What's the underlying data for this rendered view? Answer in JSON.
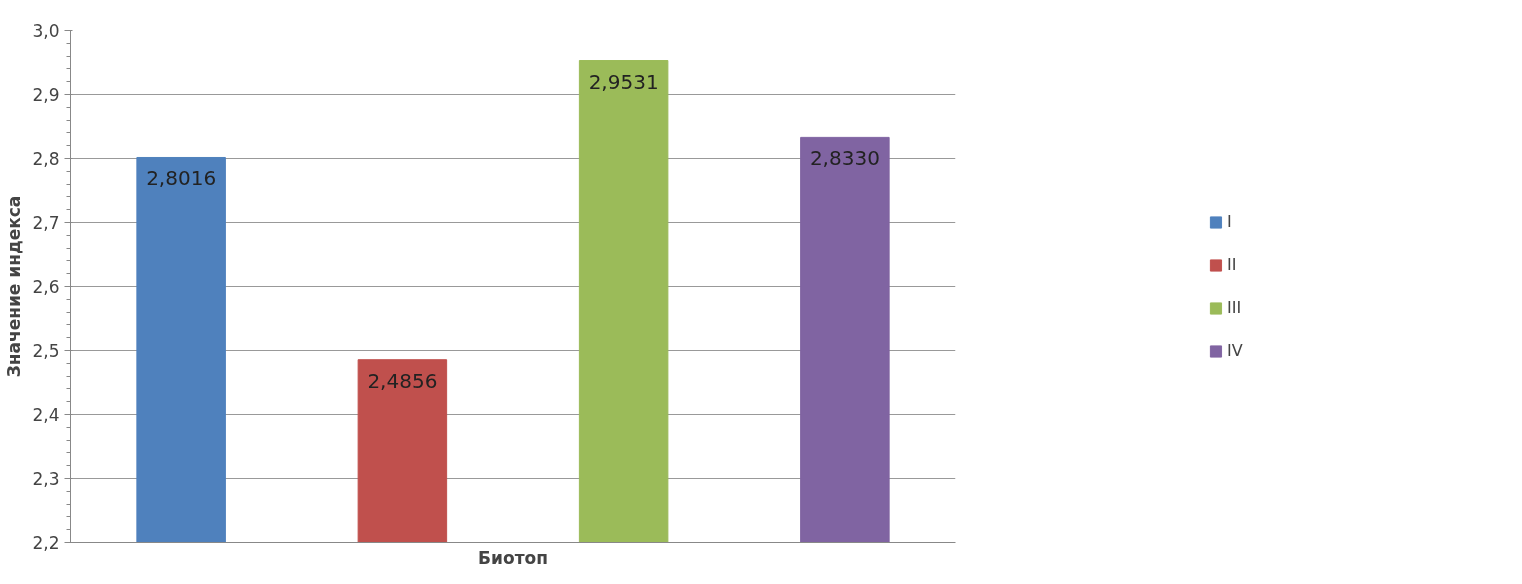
{
  "chart_data": {
    "type": "bar",
    "xlabel": "Биотоп",
    "ylabel": "Значение индекса",
    "categories": [
      null,
      null,
      null,
      null
    ],
    "series": [
      {
        "name": "I",
        "color": "#4f81bd",
        "values": [
          2.8016,
          null,
          null,
          null
        ],
        "value_labels": [
          "2,8016",
          null,
          null,
          null
        ]
      },
      {
        "name": "II",
        "color": "#c0504d",
        "values": [
          null,
          2.4856,
          null,
          null
        ],
        "value_labels": [
          null,
          "2,4856",
          null,
          null
        ]
      },
      {
        "name": "III",
        "color": "#9bbb59",
        "values": [
          null,
          null,
          2.9531,
          null
        ],
        "value_labels": [
          null,
          null,
          "2,9531",
          null
        ]
      },
      {
        "name": "IV",
        "color": "#8064a2",
        "values": [
          null,
          null,
          null,
          2.833
        ],
        "value_labels": [
          null,
          null,
          null,
          "2,8330"
        ]
      }
    ],
    "ylim": [
      2.2,
      3.0
    ],
    "yticks": [
      {
        "value": 2.2,
        "label": "2,2"
      },
      {
        "value": 2.3,
        "label": "2,3"
      },
      {
        "value": 2.4,
        "label": "2,4"
      },
      {
        "value": 2.5,
        "label": "2,5"
      },
      {
        "value": 2.6,
        "label": "2,6"
      },
      {
        "value": 2.7,
        "label": "2,7"
      },
      {
        "value": 2.8,
        "label": "2,8"
      },
      {
        "value": 2.9,
        "label": "2,9"
      },
      {
        "value": 3.0,
        "label": "3,0"
      }
    ],
    "grid": "y",
    "legend": "right",
    "tick_labels": "y"
  }
}
